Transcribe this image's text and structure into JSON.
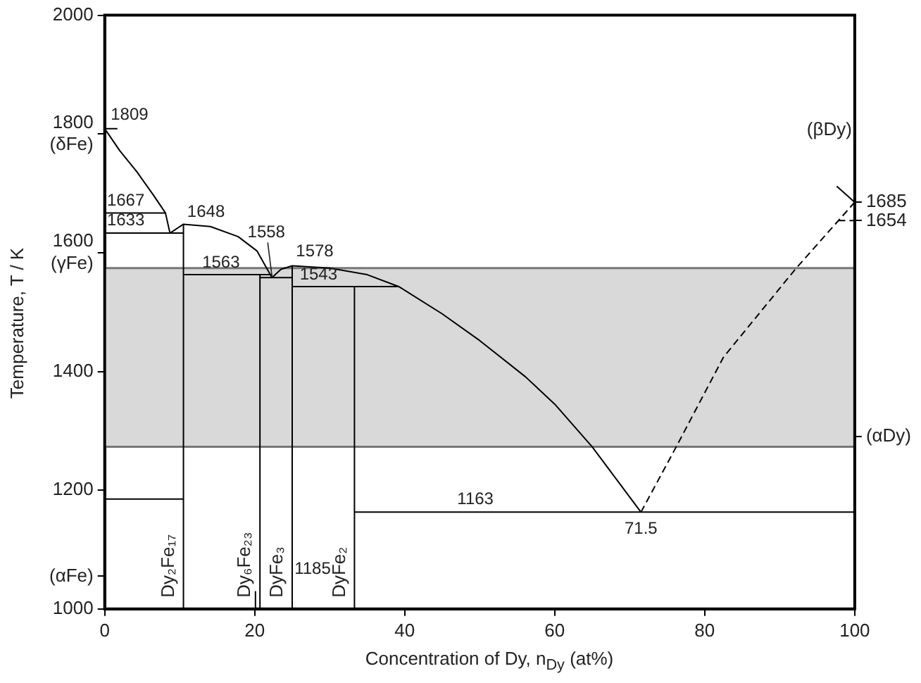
{
  "chart_data": {
    "type": "line",
    "xlabel": "Concentration of Dy, n$_{Dy}$ (at%)",
    "ylabel": "Temperature, T / K",
    "xlim": [
      0,
      100
    ],
    "xticks": [
      0,
      20,
      40,
      60,
      80,
      100
    ],
    "ylim": [
      1000,
      2000
    ],
    "yticks": [
      1000,
      1200,
      1400,
      {
        "value": 1600,
        "label": "1600\n(γFe)"
      },
      {
        "value": 1800,
        "label": "1800\n(δFe)"
      },
      2000,
      {
        "value": 1055,
        "label": "(αFe)"
      }
    ],
    "y2lim": [
      1000,
      2000
    ],
    "y2ticks": [
      1685,
      1654,
      {
        "value": 1290,
        "label": "(αDy)"
      }
    ],
    "grid": false,
    "legend": false,
    "marker": "none",
    "line_style": "solid",
    "bands": [
      {
        "axis": "y",
        "from": 1273,
        "to": 1574,
        "color": "#d9d9d9"
      }
    ],
    "ref_lines": [
      {
        "axis": "y",
        "value": 1273,
        "color": "#777777"
      },
      {
        "axis": "y",
        "value": 1574,
        "color": "#777777"
      }
    ],
    "series": [
      {
        "color": "#000000",
        "x": [
          0,
          2,
          4.3,
          6.5,
          8.1,
          8.7,
          10.5,
          14.1,
          17.8,
          20.3,
          22.3
        ],
        "values": [
          1809,
          1772,
          1736,
          1697,
          1667,
          1633,
          1648,
          1644,
          1627,
          1603,
          1558
        ]
      },
      {
        "color": "#000000",
        "x": [
          22.3,
          23.5,
          25,
          30,
          35,
          39.2,
          45,
          50,
          56.1,
          60,
          65,
          71.5
        ],
        "values": [
          1558,
          1572,
          1578,
          1574,
          1563,
          1543,
          1497,
          1452,
          1391,
          1345,
          1273,
          1163
        ]
      },
      {
        "color": "#000000",
        "line_style": "dashed",
        "x": [
          71.5,
          76.2,
          82.5,
          92.2,
          100
        ],
        "values": [
          1163,
          1273,
          1424,
          1574,
          1685
        ]
      },
      {
        "color": "#000000",
        "line_style": "dashed",
        "x": [
          97.8,
          100
        ],
        "values": [
          1654,
          1654
        ]
      },
      {
        "color": "#000000",
        "x": [
          97.6,
          100
        ],
        "values": [
          1712,
          1685
        ]
      },
      {
        "color": "#000000",
        "x": [
          0,
          1.7
        ],
        "values": [
          1809,
          1809
        ]
      },
      {
        "color": "#000000",
        "x": [
          0,
          8.1
        ],
        "values": [
          1667,
          1667
        ]
      },
      {
        "color": "#000000",
        "x": [
          0,
          10.5
        ],
        "values": [
          1633,
          1633
        ]
      },
      {
        "color": "#000000",
        "x": [
          10.5,
          22.3
        ],
        "values": [
          1563,
          1563
        ]
      },
      {
        "color": "#000000",
        "x": [
          20.7,
          25
        ],
        "values": [
          1558,
          1558
        ]
      },
      {
        "color": "#000000",
        "x": [
          25,
          39.2
        ],
        "values": [
          1543,
          1543
        ]
      },
      {
        "color": "#000000",
        "x": [
          0,
          10.5
        ],
        "values": [
          1185,
          1185
        ]
      },
      {
        "color": "#000000",
        "x": [
          33.3,
          100
        ],
        "values": [
          1163,
          1163
        ]
      },
      {
        "color": "#000000",
        "x": [
          20.1,
          20.1
        ],
        "values": [
          1000,
          1030
        ]
      },
      {
        "name": "Dy₂Fe₁₇",
        "color": "#000000",
        "x": [
          10.5,
          10.5
        ],
        "values": [
          1000,
          1648
        ]
      },
      {
        "name": "Dy₆Fe₂₃",
        "color": "#000000",
        "x": [
          20.7,
          20.7
        ],
        "values": [
          1000,
          1563
        ]
      },
      {
        "name": "DyFe₃",
        "color": "#000000",
        "x": [
          25,
          25
        ],
        "values": [
          1000,
          1578
        ]
      },
      {
        "name": "DyFe₂",
        "color": "#000000",
        "x": [
          33.3,
          33.3
        ],
        "values": [
          1000,
          1543
        ]
      }
    ],
    "annotations": [
      {
        "text": "1809",
        "x": 0.8,
        "y": 1815
      },
      {
        "text": "1667",
        "x": 0.3,
        "y": 1671
      },
      {
        "text": "1633",
        "x": 0.3,
        "y": 1637
      },
      {
        "text": "1648",
        "x": 11,
        "y": 1652
      },
      {
        "text": "1558",
        "x": 22.3,
        "y": 1558
      },
      {
        "text": "1578",
        "x": 25.5,
        "y": 1585
      },
      {
        "text": "1563",
        "x": 13,
        "y": 1566
      },
      {
        "text": "1543",
        "x": 26,
        "y": 1546
      },
      {
        "text": "1163",
        "x": 47,
        "y": 1168
      },
      {
        "text": "71.5",
        "x": 71.5,
        "y": 1163
      },
      {
        "text": "1185",
        "x": 25.3,
        "y": 1050
      },
      "(βDy)"
    ]
  }
}
